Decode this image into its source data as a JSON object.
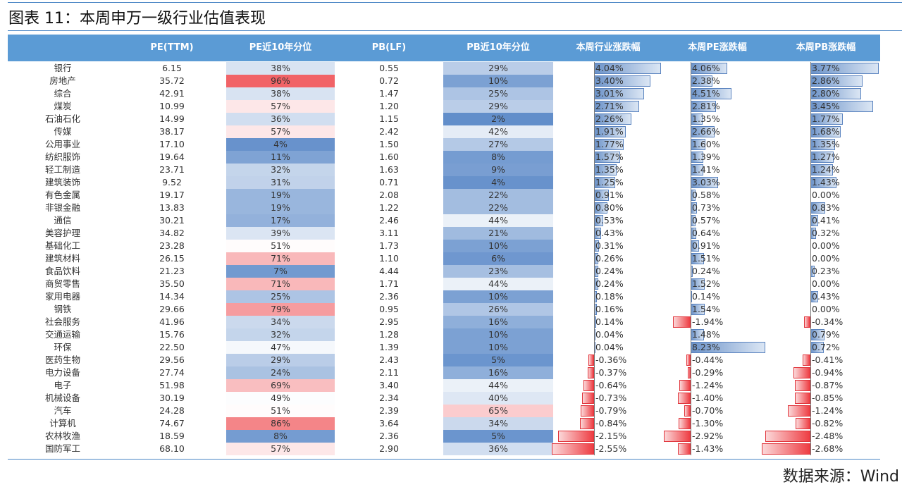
{
  "title": "图表 11：本周申万一级行业估值表现",
  "headers": [
    "",
    "PE(TTM)",
    "PE近10年分位",
    "PB(LF)",
    "PB近10年分位",
    "本周行业涨跌幅",
    "本周PE涨跌幅",
    "本周PB涨跌幅"
  ],
  "source": "数据来源：Wind",
  "colors": {
    "header_bg": "#5b9bd5",
    "bar_positive": "#6c93c9",
    "bar_negative": "#ee3d43",
    "heat_low": "#5b89c8",
    "heat_mid": "#ffffff",
    "heat_high": "#f0555a"
  },
  "rows": [
    {
      "industry": "银行",
      "pe": "6.15",
      "pe_pct": "38%",
      "pb": "0.55",
      "pb_pct": "29%",
      "ind_chg": "4.04%",
      "pe_chg": "4.06%",
      "pb_chg": "3.77%"
    },
    {
      "industry": "房地产",
      "pe": "35.72",
      "pe_pct": "96%",
      "pb": "0.72",
      "pb_pct": "10%",
      "ind_chg": "3.40%",
      "pe_chg": "2.38%",
      "pb_chg": "2.86%"
    },
    {
      "industry": "综合",
      "pe": "42.91",
      "pe_pct": "38%",
      "pb": "1.47",
      "pb_pct": "25%",
      "ind_chg": "3.01%",
      "pe_chg": "4.51%",
      "pb_chg": "2.80%"
    },
    {
      "industry": "煤炭",
      "pe": "10.99",
      "pe_pct": "57%",
      "pb": "1.20",
      "pb_pct": "29%",
      "ind_chg": "2.71%",
      "pe_chg": "2.81%",
      "pb_chg": "3.45%"
    },
    {
      "industry": "石油石化",
      "pe": "14.99",
      "pe_pct": "36%",
      "pb": "1.15",
      "pb_pct": "2%",
      "ind_chg": "2.26%",
      "pe_chg": "1.35%",
      "pb_chg": "1.77%"
    },
    {
      "industry": "传媒",
      "pe": "38.17",
      "pe_pct": "57%",
      "pb": "2.42",
      "pb_pct": "42%",
      "ind_chg": "1.91%",
      "pe_chg": "2.66%",
      "pb_chg": "1.68%"
    },
    {
      "industry": "公用事业",
      "pe": "17.10",
      "pe_pct": "4%",
      "pb": "1.50",
      "pb_pct": "27%",
      "ind_chg": "1.77%",
      "pe_chg": "1.60%",
      "pb_chg": "1.35%"
    },
    {
      "industry": "纺织服饰",
      "pe": "19.64",
      "pe_pct": "11%",
      "pb": "1.60",
      "pb_pct": "8%",
      "ind_chg": "1.57%",
      "pe_chg": "1.39%",
      "pb_chg": "1.27%"
    },
    {
      "industry": "轻工制造",
      "pe": "23.71",
      "pe_pct": "32%",
      "pb": "1.63",
      "pb_pct": "9%",
      "ind_chg": "1.35%",
      "pe_chg": "1.41%",
      "pb_chg": "1.24%"
    },
    {
      "industry": "建筑装饰",
      "pe": "9.52",
      "pe_pct": "31%",
      "pb": "0.71",
      "pb_pct": "4%",
      "ind_chg": "1.25%",
      "pe_chg": "3.03%",
      "pb_chg": "1.43%"
    },
    {
      "industry": "有色金属",
      "pe": "19.17",
      "pe_pct": "19%",
      "pb": "2.08",
      "pb_pct": "22%",
      "ind_chg": "0.91%",
      "pe_chg": "0.58%",
      "pb_chg": "0.00%"
    },
    {
      "industry": "非银金融",
      "pe": "13.83",
      "pe_pct": "19%",
      "pb": "1.22",
      "pb_pct": "22%",
      "ind_chg": "0.80%",
      "pe_chg": "0.73%",
      "pb_chg": "0.83%"
    },
    {
      "industry": "通信",
      "pe": "30.21",
      "pe_pct": "17%",
      "pb": "2.46",
      "pb_pct": "44%",
      "ind_chg": "0.53%",
      "pe_chg": "0.57%",
      "pb_chg": "0.41%"
    },
    {
      "industry": "美容护理",
      "pe": "34.82",
      "pe_pct": "39%",
      "pb": "3.11",
      "pb_pct": "21%",
      "ind_chg": "0.43%",
      "pe_chg": "0.64%",
      "pb_chg": "0.32%"
    },
    {
      "industry": "基础化工",
      "pe": "23.28",
      "pe_pct": "51%",
      "pb": "1.73",
      "pb_pct": "10%",
      "ind_chg": "0.31%",
      "pe_chg": "0.91%",
      "pb_chg": "0.00%"
    },
    {
      "industry": "建筑材料",
      "pe": "26.15",
      "pe_pct": "71%",
      "pb": "1.10",
      "pb_pct": "6%",
      "ind_chg": "0.26%",
      "pe_chg": "1.51%",
      "pb_chg": "0.00%"
    },
    {
      "industry": "食品饮料",
      "pe": "21.23",
      "pe_pct": "7%",
      "pb": "4.44",
      "pb_pct": "23%",
      "ind_chg": "0.24%",
      "pe_chg": "0.24%",
      "pb_chg": "0.23%"
    },
    {
      "industry": "商贸零售",
      "pe": "35.50",
      "pe_pct": "71%",
      "pb": "1.71",
      "pb_pct": "44%",
      "ind_chg": "0.24%",
      "pe_chg": "1.52%",
      "pb_chg": "0.00%"
    },
    {
      "industry": "家用电器",
      "pe": "14.34",
      "pe_pct": "25%",
      "pb": "2.36",
      "pb_pct": "10%",
      "ind_chg": "0.18%",
      "pe_chg": "0.14%",
      "pb_chg": "0.43%"
    },
    {
      "industry": "钢铁",
      "pe": "29.66",
      "pe_pct": "79%",
      "pb": "0.95",
      "pb_pct": "26%",
      "ind_chg": "0.16%",
      "pe_chg": "1.54%",
      "pb_chg": "0.00%"
    },
    {
      "industry": "社会服务",
      "pe": "41.96",
      "pe_pct": "34%",
      "pb": "2.95",
      "pb_pct": "16%",
      "ind_chg": "0.14%",
      "pe_chg": "-1.94%",
      "pb_chg": "-0.34%"
    },
    {
      "industry": "交通运输",
      "pe": "15.76",
      "pe_pct": "32%",
      "pb": "1.28",
      "pb_pct": "10%",
      "ind_chg": "0.04%",
      "pe_chg": "1.48%",
      "pb_chg": "0.79%"
    },
    {
      "industry": "环保",
      "pe": "22.50",
      "pe_pct": "47%",
      "pb": "1.39",
      "pb_pct": "10%",
      "ind_chg": "0.04%",
      "pe_chg": "8.23%",
      "pb_chg": "0.72%"
    },
    {
      "industry": "医药生物",
      "pe": "29.56",
      "pe_pct": "29%",
      "pb": "2.43",
      "pb_pct": "5%",
      "ind_chg": "-0.36%",
      "pe_chg": "-0.44%",
      "pb_chg": "-0.41%"
    },
    {
      "industry": "电力设备",
      "pe": "27.74",
      "pe_pct": "24%",
      "pb": "2.11",
      "pb_pct": "16%",
      "ind_chg": "-0.37%",
      "pe_chg": "-0.29%",
      "pb_chg": "-0.94%"
    },
    {
      "industry": "电子",
      "pe": "51.98",
      "pe_pct": "69%",
      "pb": "3.40",
      "pb_pct": "44%",
      "ind_chg": "-0.64%",
      "pe_chg": "-1.24%",
      "pb_chg": "-0.87%"
    },
    {
      "industry": "机械设备",
      "pe": "30.19",
      "pe_pct": "49%",
      "pb": "2.34",
      "pb_pct": "40%",
      "ind_chg": "-0.73%",
      "pe_chg": "-1.40%",
      "pb_chg": "-0.85%"
    },
    {
      "industry": "汽车",
      "pe": "24.28",
      "pe_pct": "51%",
      "pb": "2.39",
      "pb_pct": "65%",
      "ind_chg": "-0.79%",
      "pe_chg": "-0.70%",
      "pb_chg": "-1.24%"
    },
    {
      "industry": "计算机",
      "pe": "74.67",
      "pe_pct": "86%",
      "pb": "3.64",
      "pb_pct": "34%",
      "ind_chg": "-0.84%",
      "pe_chg": "-1.30%",
      "pb_chg": "-0.82%"
    },
    {
      "industry": "农林牧渔",
      "pe": "18.59",
      "pe_pct": "8%",
      "pb": "2.36",
      "pb_pct": "5%",
      "ind_chg": "-2.15%",
      "pe_chg": "-2.92%",
      "pb_chg": "-2.48%"
    },
    {
      "industry": "国防军工",
      "pe": "68.10",
      "pe_pct": "57%",
      "pb": "2.90",
      "pb_pct": "36%",
      "ind_chg": "-2.55%",
      "pe_chg": "-1.43%",
      "pb_chg": "-2.68%"
    }
  ]
}
